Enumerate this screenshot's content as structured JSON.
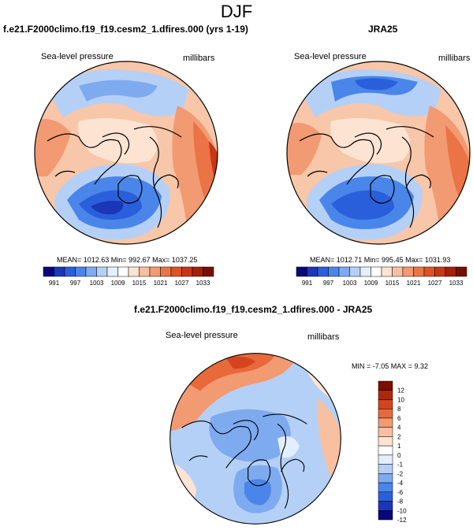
{
  "figure": {
    "title": "DJF"
  },
  "panels": {
    "model": {
      "title": "f.e21.F2000climo.f19_f19.cesm2_1.dfires.000 (yrs 1-19)",
      "variable": "Sea-level pressure",
      "units": "millibars",
      "stats": "MEAN= 1012.63  Min= 992.67  Max= 1037.25"
    },
    "obs": {
      "title": "JRA25",
      "variable": "Sea-level pressure",
      "units": "millibars",
      "stats": "MEAN= 1012.71  Min= 995.45  Max= 1031.93"
    },
    "diff": {
      "title": "f.e21.F2000climo.f19_f19.cesm2_1.dfires.000 - JRA25",
      "variable": "Sea-level pressure",
      "units": "millibars",
      "stats": "MIN =  -7.05 MAX =   9.32"
    }
  },
  "colorbars": {
    "abs": {
      "labels": [
        "991",
        "997",
        "1003",
        "1009",
        "1015",
        "1021",
        "1027",
        "1033"
      ],
      "colors": [
        "#08087a",
        "#1c36b8",
        "#2a5fdb",
        "#4a85ea",
        "#7eaaf0",
        "#b5d0f7",
        "#e3effc",
        "#ffffff",
        "#fde3d2",
        "#f8c0a0",
        "#f29a72",
        "#ea7446",
        "#de5226",
        "#c73716",
        "#a3200a",
        "#7a0e02"
      ]
    },
    "diff": {
      "labels": [
        "12",
        "10",
        "8",
        "6",
        "4",
        "2",
        "1",
        "0",
        "-1",
        "-2",
        "-4",
        "-6",
        "-8",
        "-10",
        "-12"
      ],
      "colors": [
        "#7a0e02",
        "#b0280c",
        "#d4451e",
        "#e8693a",
        "#f29a72",
        "#f8c0a0",
        "#fde3d2",
        "#ffffff",
        "#e3effc",
        "#b5d0f7",
        "#7eaaf0",
        "#4a85ea",
        "#2a5fdb",
        "#1c36b8",
        "#08087a"
      ]
    }
  }
}
